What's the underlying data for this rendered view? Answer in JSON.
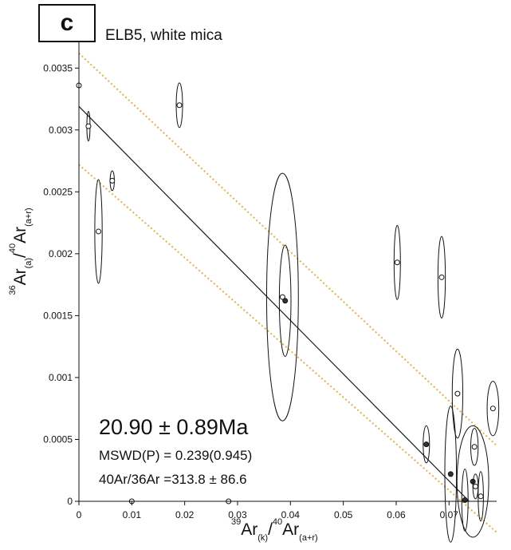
{
  "panel_label": "c",
  "subtitle": "ELB5, white mica",
  "annotations": {
    "age": "20.90 ± 0.89Ma",
    "mswd": "MSWD(P) = 0.239(0.945)",
    "initial_ratio": "40Ar/36Ar =313.8 ± 86.6"
  },
  "colors": {
    "regression_line": "#1a1a1a",
    "error_envelope": "#e2b14a",
    "ellipse": "#111111",
    "background": "#ffffff"
  },
  "chart_data": {
    "type": "scatter",
    "title": "",
    "xlabel": {
      "sup": "39",
      "base1": "Ar",
      "sub1": "(k)",
      "slash": "/",
      "sup2": "40",
      "base2": "Ar",
      "sub2": "(a+r)"
    },
    "ylabel": {
      "sup": "36",
      "base1": "Ar",
      "sub1": "(a)",
      "slash": "/",
      "sup2": "40",
      "base2": "Ar",
      "sub2": "(a+r)"
    },
    "xlim": [
      0,
      0.079
    ],
    "ylim": [
      0,
      0.00365
    ],
    "xticks": [
      0,
      0.01,
      0.02,
      0.03,
      0.04,
      0.05,
      0.06,
      0.07
    ],
    "xtick_labels": [
      "0",
      "0.01",
      "0.02",
      "0.03",
      "0.04",
      "0.05",
      "0.06",
      "0.07"
    ],
    "yticks": [
      0,
      0.0005,
      0.001,
      0.0015,
      0.002,
      0.0025,
      0.003,
      0.0035
    ],
    "ytick_labels": [
      "0",
      "0.0005",
      "0.001",
      "0.0015",
      "0.002",
      "0.0025",
      "0.003",
      "0.0035"
    ],
    "grid": false,
    "regression": {
      "x_intercept": 0.0738,
      "y_intercept": 0.00319
    },
    "envelope_upper": {
      "y_at_0": 0.00362,
      "y_at_xmax": 0.00045
    },
    "envelope_lower": {
      "y_at_0": 0.00272,
      "y_at_xmax": -0.00025
    },
    "points": [
      {
        "x": 0.0,
        "y": 0.00336,
        "sx": 0.0,
        "sy": 0.0,
        "fill": "open"
      },
      {
        "x": 0.0018,
        "y": 0.00303,
        "sx": 0.0003,
        "sy": 0.00012,
        "fill": "open"
      },
      {
        "x": 0.0037,
        "y": 0.00218,
        "sx": 0.0007,
        "sy": 0.00042,
        "fill": "open"
      },
      {
        "x": 0.0063,
        "y": 0.00259,
        "sx": 0.0004,
        "sy": 8e-05,
        "fill": "open"
      },
      {
        "x": 0.01,
        "y": 0.0,
        "sx": 0.0,
        "sy": 0.0,
        "fill": "open"
      },
      {
        "x": 0.019,
        "y": 0.0032,
        "sx": 0.0006,
        "sy": 0.00018,
        "fill": "open"
      },
      {
        "x": 0.0283,
        "y": 0.0,
        "sx": 0.0,
        "sy": 0.0,
        "fill": "open"
      },
      {
        "x": 0.0385,
        "y": 0.00165,
        "sx": 0.003,
        "sy": 0.001,
        "fill": "open"
      },
      {
        "x": 0.039,
        "y": 0.00162,
        "sx": 0.0011,
        "sy": 0.00045,
        "fill": "filled"
      },
      {
        "x": 0.0602,
        "y": 0.00193,
        "sx": 0.0006,
        "sy": 0.0003,
        "fill": "open"
      },
      {
        "x": 0.0686,
        "y": 0.00181,
        "sx": 0.0007,
        "sy": 0.00033,
        "fill": "open"
      },
      {
        "x": 0.0657,
        "y": 0.00046,
        "sx": 0.0006,
        "sy": 0.00015,
        "fill": "filled"
      },
      {
        "x": 0.0703,
        "y": 0.00022,
        "sx": 0.0011,
        "sy": 0.00055,
        "fill": "filled"
      },
      {
        "x": 0.0716,
        "y": 0.00087,
        "sx": 0.001,
        "sy": 0.00036,
        "fill": "open"
      },
      {
        "x": 0.073,
        "y": 1e-05,
        "sx": 0.0006,
        "sy": 0.00025,
        "fill": "filled"
      },
      {
        "x": 0.0745,
        "y": 0.00016,
        "sx": 0.003,
        "sy": 0.00045,
        "fill": "filled"
      },
      {
        "x": 0.0748,
        "y": 0.00044,
        "sx": 0.0007,
        "sy": 0.00015,
        "fill": "open"
      },
      {
        "x": 0.075,
        "y": 0.00012,
        "sx": 0.0005,
        "sy": 0.0001,
        "fill": "open"
      },
      {
        "x": 0.076,
        "y": 4e-05,
        "sx": 0.0005,
        "sy": 0.0002,
        "fill": "open"
      },
      {
        "x": 0.0783,
        "y": 0.00075,
        "sx": 0.0011,
        "sy": 0.00022,
        "fill": "open"
      }
    ]
  }
}
